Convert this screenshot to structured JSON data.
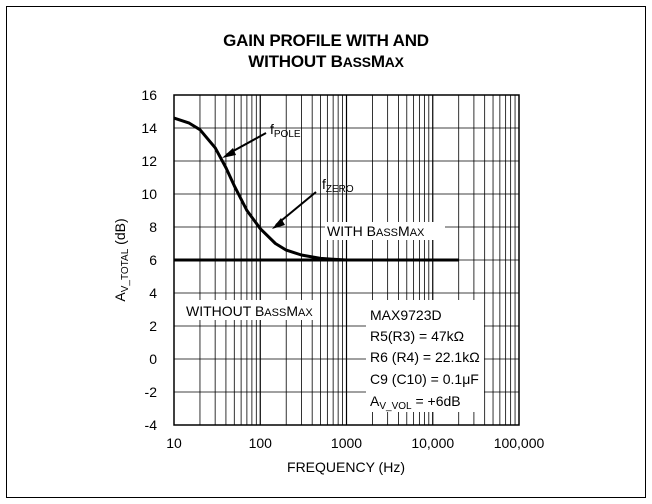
{
  "chart_data": {
    "type": "line",
    "title_line1": "GAIN PROFILE WITH AND",
    "title_line2": "WITHOUT BassMax",
    "xlabel": "FREQUENCY (Hz)",
    "ylabel": "AV_TOTAL (dB)",
    "x_scale": "log",
    "xlim": [
      10,
      100000
    ],
    "ylim": [
      -4,
      16
    ],
    "grid": true,
    "x_tick_labels": [
      "10",
      "100",
      "1000",
      "10,000",
      "100,000"
    ],
    "y_tick_labels": [
      "16",
      "14",
      "12",
      "10",
      "8",
      "6",
      "4",
      "2",
      "0",
      "-2",
      "-4"
    ],
    "series": [
      {
        "name": "WITH BassMax",
        "x": [
          10,
          15,
          20,
          30,
          40,
          50,
          70,
          100,
          150,
          200,
          300,
          500,
          700,
          1000,
          2000,
          5000,
          10000,
          20000
        ],
        "y": [
          14.6,
          14.3,
          13.9,
          12.8,
          11.6,
          10.5,
          9.0,
          7.9,
          7.0,
          6.6,
          6.3,
          6.1,
          6.05,
          6.0,
          6.0,
          6.0,
          6.0,
          6.0
        ]
      },
      {
        "name": "WITHOUT BassMax",
        "x": [
          10,
          20000
        ],
        "y": [
          6.0,
          6.0
        ]
      }
    ],
    "annotations": {
      "f_pole": "fPOLE",
      "f_zero": "fZERO",
      "with_label": "WITH BassMax",
      "without_label": "WITHOUT BassMax",
      "specs": [
        "MAX9723D",
        "R5(R3) = 47kΩ",
        "R6 (R4) = 22.1kΩ",
        "C9 (C10) = 0.1μF",
        "AV_VOL = +6dB"
      ]
    }
  }
}
